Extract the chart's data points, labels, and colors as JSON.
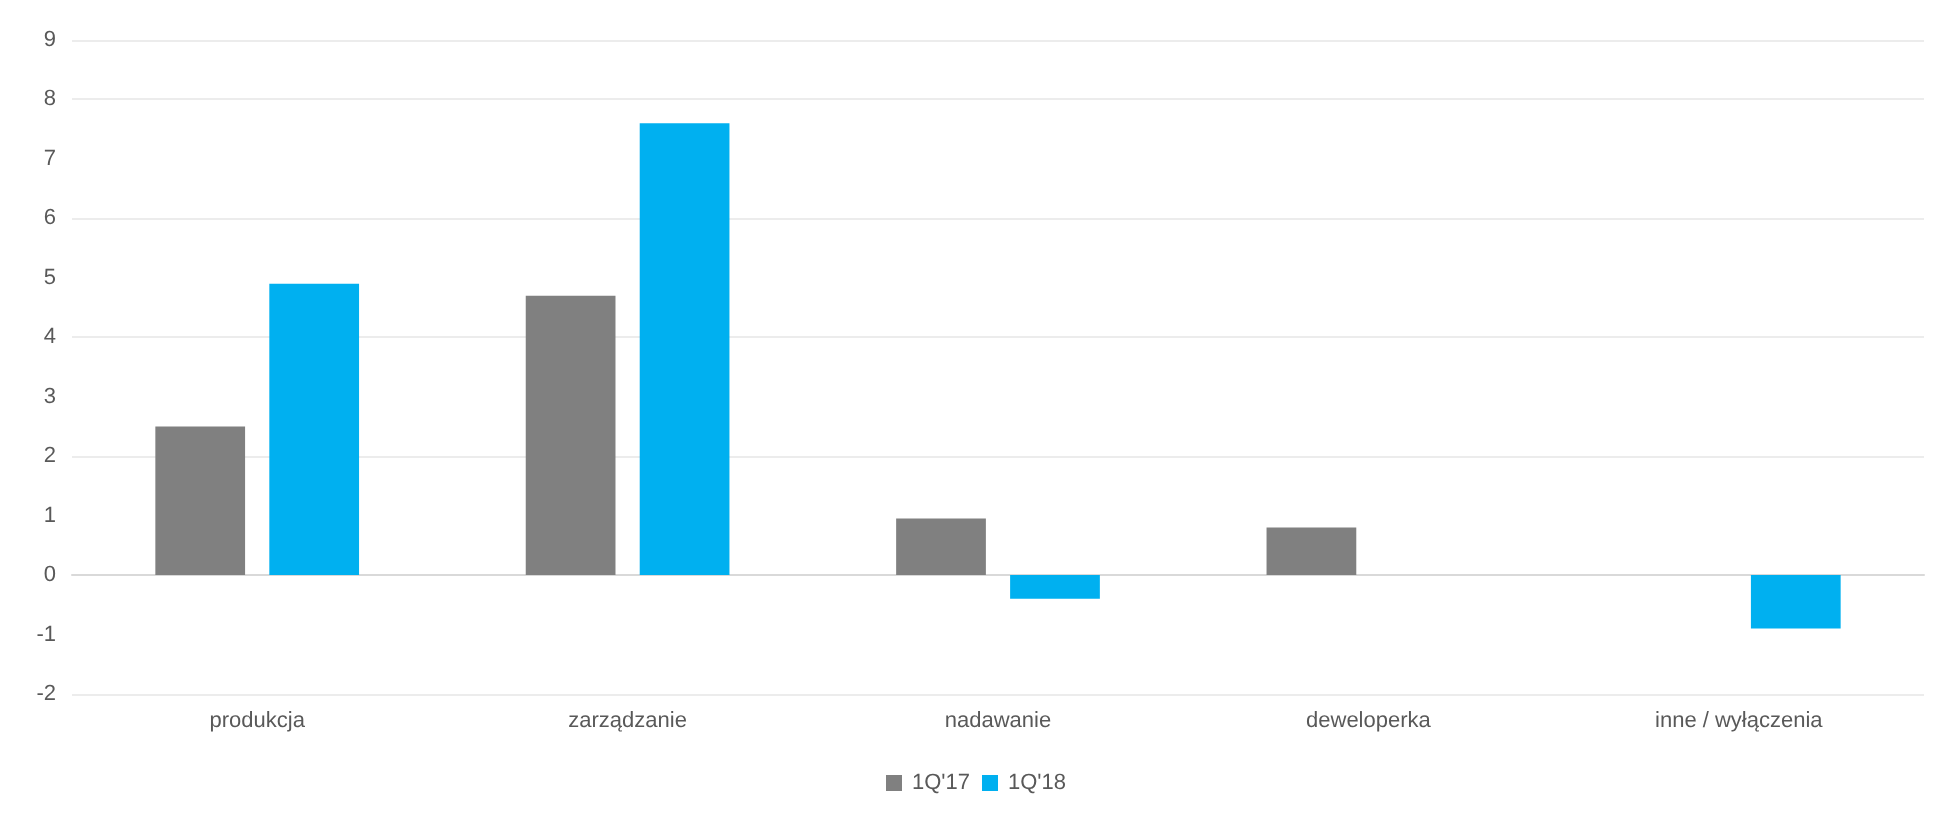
{
  "chart_data": {
    "type": "bar",
    "categories": [
      "produkcja",
      "zarządzanie",
      "nadawanie",
      "deweloperka",
      "inne / wyłączenia"
    ],
    "series": [
      {
        "name": "1Q'17",
        "color": "#808080",
        "values": [
          2.5,
          4.7,
          0.95,
          0.8,
          0
        ]
      },
      {
        "name": "1Q'18",
        "color": "#00b0f0",
        "values": [
          4.9,
          7.6,
          -0.4,
          0,
          -0.9
        ]
      }
    ],
    "ylim": [
      -2,
      9
    ],
    "yticks": [
      -2,
      -1,
      0,
      1,
      2,
      3,
      4,
      5,
      6,
      7,
      8,
      9
    ],
    "grid": "y",
    "legend": "bottom"
  }
}
